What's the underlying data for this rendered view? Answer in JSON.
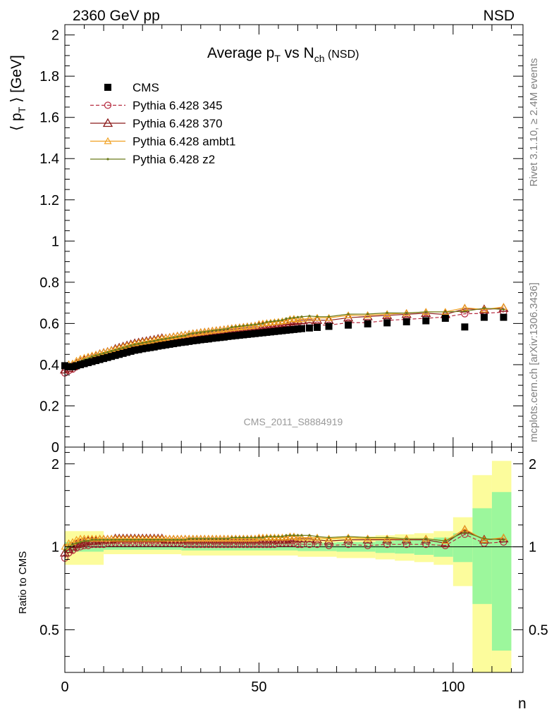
{
  "header": {
    "left": "2360 GeV pp",
    "right": "NSD"
  },
  "side": {
    "rivet": "Rivet 3.1.10, ≥ 2.4M events",
    "mcplots": "mcplots.cern.ch [arXiv:1306.3436]"
  },
  "chart_data": {
    "type": "scatter",
    "title": "Average pT vs Nch (NSD)",
    "title_parts": {
      "a": "Average p",
      "a_sub": "T",
      "b": " vs N",
      "b_sub": "ch",
      "c": " (NSD)"
    },
    "ylabel_parts": {
      "a": "⟨ p",
      "a_sub": "T",
      "b": " ⟩ [GeV]"
    },
    "xlabel": "n",
    "ratio_ylabel": "Ratio to CMS",
    "watermark": "CMS_2011_S8884919",
    "xlim": [
      0,
      118
    ],
    "ylim": [
      0,
      2.05
    ],
    "ratio_ylim": [
      0.35,
      2.3
    ],
    "x_ticks": [
      {
        "value": 0,
        "label": "0"
      },
      {
        "value": 50,
        "label": "50"
      },
      {
        "value": 100,
        "label": "100"
      }
    ],
    "y_ticks": [
      {
        "value": 0,
        "label": "0"
      },
      {
        "value": 0.2,
        "label": "0.2"
      },
      {
        "value": 0.4,
        "label": "0.4"
      },
      {
        "value": 0.6,
        "label": "0.6"
      },
      {
        "value": 0.8,
        "label": "0.8"
      },
      {
        "value": 1.0,
        "label": "1"
      },
      {
        "value": 1.2,
        "label": "1.2"
      },
      {
        "value": 1.4,
        "label": "1.4"
      },
      {
        "value": 1.6,
        "label": "1.6"
      },
      {
        "value": 1.8,
        "label": "1.8"
      },
      {
        "value": 2.0,
        "label": "2"
      }
    ],
    "ratio_ticks": [
      {
        "value": 0.5,
        "label": "0.5"
      },
      {
        "value": 1.0,
        "label": "1"
      },
      {
        "value": 2.0,
        "label": "2"
      }
    ],
    "data": {
      "name": "CMS",
      "x": [
        0,
        1,
        2,
        3,
        4,
        5,
        6,
        7,
        8,
        9,
        10,
        11,
        12,
        13,
        14,
        15,
        16,
        17,
        18,
        19,
        20,
        21,
        22,
        23,
        24,
        25,
        26,
        27,
        28,
        29,
        30,
        31,
        32,
        33,
        34,
        35,
        36,
        37,
        38,
        39,
        40,
        41,
        42,
        43,
        44,
        45,
        46,
        47,
        48,
        49,
        50,
        51,
        52,
        53,
        54,
        55,
        56,
        57,
        58,
        59,
        60,
        61,
        63,
        65,
        68,
        73,
        78,
        83,
        88,
        93,
        98,
        103,
        108,
        113
      ],
      "y": [
        0.395,
        0.39,
        0.39,
        0.395,
        0.4,
        0.405,
        0.41,
        0.415,
        0.42,
        0.425,
        0.43,
        0.435,
        0.44,
        0.445,
        0.45,
        0.455,
        0.46,
        0.465,
        0.47,
        0.473,
        0.477,
        0.48,
        0.483,
        0.486,
        0.49,
        0.493,
        0.496,
        0.499,
        0.502,
        0.505,
        0.508,
        0.51,
        0.513,
        0.516,
        0.518,
        0.521,
        0.523,
        0.525,
        0.528,
        0.53,
        0.532,
        0.534,
        0.537,
        0.539,
        0.541,
        0.543,
        0.545,
        0.547,
        0.549,
        0.551,
        0.553,
        0.555,
        0.557,
        0.559,
        0.561,
        0.563,
        0.565,
        0.567,
        0.569,
        0.571,
        0.573,
        0.575,
        0.578,
        0.581,
        0.586,
        0.592,
        0.598,
        0.603,
        0.608,
        0.613,
        0.625,
        0.583,
        0.63,
        0.63
      ]
    },
    "series": [
      {
        "name": "Pythia 6.428 345",
        "color": "#b5293e",
        "marker": "circle",
        "dashed": true,
        "ratio": [
          0.91,
          0.95,
          0.97,
          0.99,
          1.0,
          1.01,
          1.01,
          1.02,
          1.02,
          1.02,
          1.02,
          1.03,
          1.03,
          1.03,
          1.03,
          1.03,
          1.03,
          1.03,
          1.03,
          1.03,
          1.03,
          1.03,
          1.03,
          1.03,
          1.03,
          1.03,
          1.03,
          1.03,
          1.03,
          1.03,
          1.03,
          1.02,
          1.02,
          1.02,
          1.02,
          1.02,
          1.02,
          1.02,
          1.02,
          1.02,
          1.02,
          1.02,
          1.02,
          1.02,
          1.02,
          1.02,
          1.02,
          1.02,
          1.02,
          1.02,
          1.02,
          1.02,
          1.02,
          1.02,
          1.02,
          1.03,
          1.03,
          1.03,
          1.03,
          1.03,
          1.02,
          1.02,
          1.02,
          1.02,
          1.01,
          1.02,
          1.01,
          1.02,
          1.02,
          1.02,
          1.01,
          1.11,
          1.03,
          1.04
        ]
      },
      {
        "name": "Pythia 6.428 370",
        "color": "#8b1a1a",
        "marker": "triangle",
        "dashed": false,
        "ratio": [
          0.95,
          0.98,
          1.0,
          1.02,
          1.03,
          1.04,
          1.05,
          1.05,
          1.05,
          1.06,
          1.06,
          1.06,
          1.06,
          1.07,
          1.07,
          1.07,
          1.07,
          1.07,
          1.07,
          1.07,
          1.07,
          1.07,
          1.07,
          1.07,
          1.07,
          1.07,
          1.06,
          1.06,
          1.06,
          1.06,
          1.06,
          1.06,
          1.06,
          1.06,
          1.06,
          1.06,
          1.06,
          1.06,
          1.06,
          1.06,
          1.06,
          1.06,
          1.06,
          1.06,
          1.06,
          1.06,
          1.06,
          1.06,
          1.06,
          1.06,
          1.06,
          1.06,
          1.06,
          1.06,
          1.06,
          1.06,
          1.06,
          1.06,
          1.07,
          1.07,
          1.07,
          1.07,
          1.07,
          1.06,
          1.05,
          1.06,
          1.06,
          1.06,
          1.06,
          1.06,
          1.03,
          1.15,
          1.06,
          1.07
        ]
      },
      {
        "name": "Pythia 6.428 ambt1",
        "color": "#f0a020",
        "marker": "triangle-small",
        "dashed": false,
        "ratio": [
          1.0,
          1.03,
          1.04,
          1.06,
          1.07,
          1.07,
          1.07,
          1.07,
          1.07,
          1.07,
          1.07,
          1.07,
          1.07,
          1.07,
          1.07,
          1.07,
          1.07,
          1.07,
          1.07,
          1.07,
          1.07,
          1.07,
          1.07,
          1.07,
          1.07,
          1.07,
          1.07,
          1.07,
          1.07,
          1.07,
          1.07,
          1.07,
          1.07,
          1.07,
          1.07,
          1.07,
          1.07,
          1.07,
          1.07,
          1.07,
          1.07,
          1.07,
          1.07,
          1.07,
          1.07,
          1.07,
          1.07,
          1.07,
          1.07,
          1.07,
          1.08,
          1.08,
          1.08,
          1.08,
          1.08,
          1.08,
          1.08,
          1.08,
          1.09,
          1.09,
          1.08,
          1.08,
          1.08,
          1.08,
          1.07,
          1.08,
          1.07,
          1.07,
          1.07,
          1.07,
          1.05,
          1.16,
          1.06,
          1.08
        ]
      },
      {
        "name": "Pythia 6.428 z2",
        "color": "#6b7a1a",
        "marker": "dot",
        "dashed": false,
        "ratio": [
          0.97,
          1.0,
          1.02,
          1.03,
          1.04,
          1.05,
          1.05,
          1.06,
          1.06,
          1.06,
          1.06,
          1.06,
          1.06,
          1.06,
          1.06,
          1.06,
          1.06,
          1.06,
          1.06,
          1.06,
          1.06,
          1.06,
          1.06,
          1.06,
          1.06,
          1.06,
          1.06,
          1.06,
          1.06,
          1.06,
          1.06,
          1.06,
          1.07,
          1.07,
          1.07,
          1.07,
          1.07,
          1.07,
          1.07,
          1.07,
          1.07,
          1.07,
          1.07,
          1.08,
          1.08,
          1.08,
          1.08,
          1.08,
          1.08,
          1.08,
          1.08,
          1.08,
          1.09,
          1.09,
          1.09,
          1.09,
          1.09,
          1.1,
          1.1,
          1.1,
          1.1,
          1.1,
          1.1,
          1.09,
          1.08,
          1.09,
          1.08,
          1.08,
          1.07,
          1.07,
          1.05,
          1.13,
          1.07,
          1.06
        ]
      }
    ],
    "bands": [
      {
        "x0": 0,
        "x1": 10,
        "stat": 0.04,
        "tot": 0.14
      },
      {
        "x0": 10,
        "x1": 30,
        "stat": 0.025,
        "tot": 0.06
      },
      {
        "x0": 30,
        "x1": 60,
        "stat": 0.03,
        "tot": 0.07
      },
      {
        "x0": 60,
        "x1": 70,
        "stat": 0.035,
        "tot": 0.08
      },
      {
        "x0": 70,
        "x1": 80,
        "stat": 0.04,
        "tot": 0.09
      },
      {
        "x0": 80,
        "x1": 85,
        "stat": 0.05,
        "tot": 0.1
      },
      {
        "x0": 85,
        "x1": 90,
        "stat": 0.055,
        "tot": 0.11
      },
      {
        "x0": 90,
        "x1": 95,
        "stat": 0.065,
        "tot": 0.12
      },
      {
        "x0": 95,
        "x1": 100,
        "stat": 0.08,
        "tot": 0.14
      },
      {
        "x0": 100,
        "x1": 105,
        "stat": 0.12,
        "tot": 0.28
      },
      {
        "x0": 105,
        "x1": 110,
        "stat": 0.38,
        "tot": 0.82
      },
      {
        "x0": 110,
        "x1": 115,
        "stat": 0.58,
        "tot": 1.05
      }
    ],
    "colors": {
      "stat_band": "#9cf79c",
      "tot_band": "#fcfc9c",
      "data": "#000000",
      "grey_text": "#808080"
    }
  }
}
